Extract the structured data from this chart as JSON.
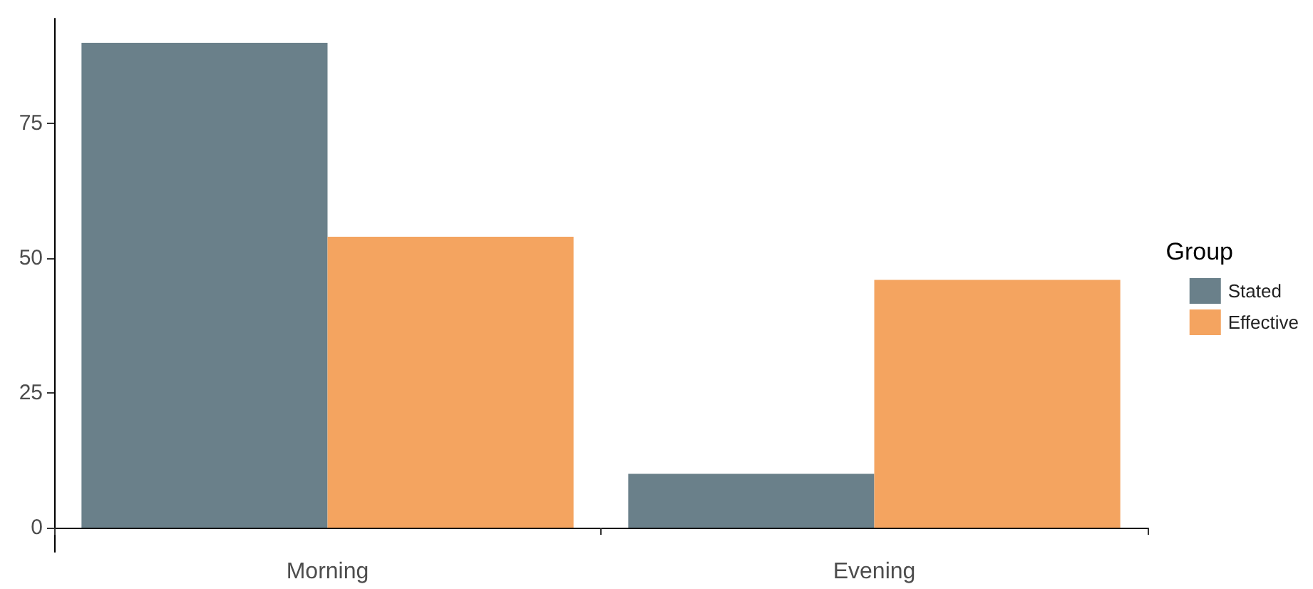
{
  "chart_data": {
    "type": "bar",
    "categories": [
      "Morning",
      "Evening"
    ],
    "series": [
      {
        "name": "Stated",
        "color": "#6a808a",
        "values": [
          90,
          10
        ]
      },
      {
        "name": "Effective",
        "color": "#f4a460",
        "values": [
          54,
          46
        ]
      }
    ],
    "ylim": [
      -4.5,
      94.5
    ],
    "yticks": [
      0,
      25,
      50,
      75
    ],
    "grid": false,
    "legend": "right",
    "legend_title": "Group"
  }
}
